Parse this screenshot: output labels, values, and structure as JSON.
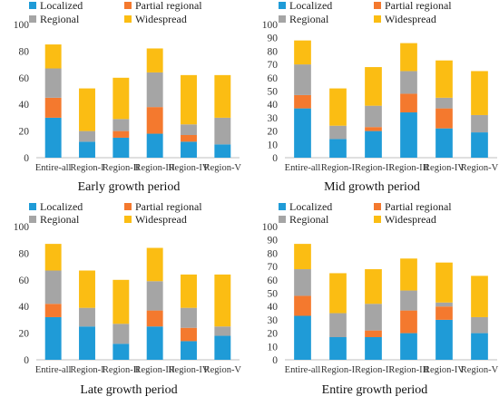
{
  "chart_data": [
    {
      "type": "bar",
      "stacked": true,
      "title": "Early growth period",
      "categories": [
        "Entire-all",
        "Region-I",
        "Region-II",
        "Region-III",
        "Region-IV",
        "Region-V"
      ],
      "ylim": [
        0,
        100
      ],
      "yticks": [
        0,
        20,
        40,
        60,
        80,
        100
      ],
      "legend": "top-left",
      "series": [
        {
          "name": "Localized",
          "color": "#1f9bd7",
          "values": [
            30,
            12,
            15,
            18,
            12,
            10
          ]
        },
        {
          "name": "Partial regional",
          "color": "#f4792e",
          "values": [
            15,
            0,
            5,
            20,
            5,
            0
          ]
        },
        {
          "name": "Regional",
          "color": "#a5a5a5",
          "values": [
            22,
            8,
            9,
            26,
            8,
            20
          ]
        },
        {
          "name": "Widespread",
          "color": "#fbbd13",
          "values": [
            18,
            32,
            31,
            18,
            37,
            32
          ]
        }
      ]
    },
    {
      "type": "bar",
      "stacked": true,
      "title": "Mid growth period",
      "categories": [
        "Entire-all",
        "Region-I",
        "Region-II",
        "Region-III",
        "Region-IV",
        "Region-V"
      ],
      "ylim": [
        0,
        100
      ],
      "yticks": [
        0,
        10,
        20,
        30,
        40,
        50,
        60,
        70,
        80,
        90,
        100
      ],
      "legend": "top-left",
      "series": [
        {
          "name": "Localized",
          "color": "#1f9bd7",
          "values": [
            37,
            14,
            20,
            34,
            22,
            19
          ]
        },
        {
          "name": "Partial regional",
          "color": "#f4792e",
          "values": [
            10,
            0,
            3,
            14,
            15,
            0
          ]
        },
        {
          "name": "Regional",
          "color": "#a5a5a5",
          "values": [
            23,
            10,
            16,
            17,
            8,
            13
          ]
        },
        {
          "name": "Widespread",
          "color": "#fbbd13",
          "values": [
            18,
            28,
            29,
            21,
            28,
            33
          ]
        }
      ]
    },
    {
      "type": "bar",
      "stacked": true,
      "title": "Late growth period",
      "categories": [
        "Entire-all",
        "Region-I",
        "Region-II",
        "Region-III",
        "Region-IV",
        "Region-V"
      ],
      "ylim": [
        0,
        100
      ],
      "yticks": [
        0,
        20,
        40,
        60,
        80,
        100
      ],
      "legend": "top-left",
      "series": [
        {
          "name": "Localized",
          "color": "#1f9bd7",
          "values": [
            32,
            25,
            12,
            25,
            14,
            18
          ]
        },
        {
          "name": "Partial regional",
          "color": "#f4792e",
          "values": [
            10,
            0,
            0,
            12,
            10,
            0
          ]
        },
        {
          "name": "Regional",
          "color": "#a5a5a5",
          "values": [
            25,
            14,
            15,
            22,
            15,
            7
          ]
        },
        {
          "name": "Widespread",
          "color": "#fbbd13",
          "values": [
            20,
            28,
            33,
            25,
            25,
            39
          ]
        }
      ]
    },
    {
      "type": "bar",
      "stacked": true,
      "title": "Entire growth period",
      "categories": [
        "Entire-all",
        "Region-I",
        "Region-II",
        "Region-III",
        "Region-IV",
        "Region-V"
      ],
      "ylim": [
        0,
        100
      ],
      "yticks": [
        0,
        10,
        20,
        30,
        40,
        50,
        60,
        70,
        80,
        90,
        100
      ],
      "legend": "top-left",
      "series": [
        {
          "name": "Localized",
          "color": "#1f9bd7",
          "values": [
            33,
            17,
            17,
            20,
            30,
            20
          ]
        },
        {
          "name": "Partial regional",
          "color": "#f4792e",
          "values": [
            15,
            0,
            5,
            17,
            10,
            0
          ]
        },
        {
          "name": "Regional",
          "color": "#a5a5a5",
          "values": [
            20,
            18,
            20,
            15,
            3,
            12
          ]
        },
        {
          "name": "Widespread",
          "color": "#fbbd13",
          "values": [
            19,
            30,
            26,
            24,
            30,
            31
          ]
        }
      ]
    }
  ]
}
